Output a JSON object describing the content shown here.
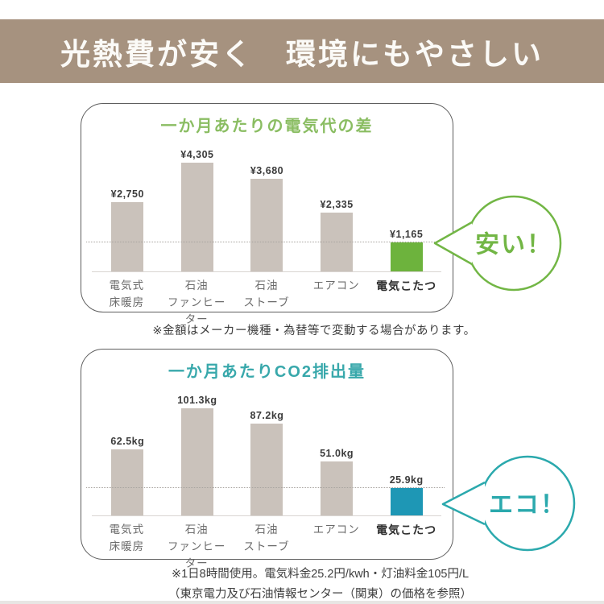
{
  "banner": {
    "text": "光熱費が安く　環境にもやさしい",
    "bg": "#a6927f",
    "color": "#fbfaf7"
  },
  "notes": {
    "price_variation": "※金額はメーカー機種・為替等で変動する場合があります。",
    "usage_line1": "※1日8時間使用。電気料金25.2円/kwh・灯油料金105円/L",
    "usage_line2": "（東京電力及び石油情報センター（関東）の価格を参照）"
  },
  "chart_data": [
    {
      "type": "bar",
      "title": "一か月あたりの電気代の差",
      "categories": [
        "電気式床暖房",
        "石油ファンヒーター",
        "石油ストーブ",
        "エアコン",
        "電気こたつ"
      ],
      "category_lines": [
        [
          "電気式",
          "床暖房"
        ],
        [
          "石油",
          "ファンヒーター"
        ],
        [
          "石油",
          "ストーブ"
        ],
        [
          "エアコン"
        ],
        [
          "電気こたつ"
        ]
      ],
      "values": [
        2750,
        4305,
        3680,
        2335,
        1165
      ],
      "data_labels": [
        "¥2,750",
        "¥4,305",
        "¥3,680",
        "¥2,335",
        "¥1,165"
      ],
      "unit": "¥",
      "ylim": [
        0,
        4500
      ],
      "grid": false,
      "legend": "none",
      "highlight_index": 4,
      "bar_color": "#cac2bb",
      "highlight_color": "#6db33d",
      "title_color": "#8abd62",
      "annotation": "安い！",
      "annotation_color": "#72b645",
      "reference_line_at_highlight_top": true
    },
    {
      "type": "bar",
      "title": "一か月あたりCO2排出量",
      "categories": [
        "電気式床暖房",
        "石油ファンヒーター",
        "石油ストーブ",
        "エアコン",
        "電気こたつ"
      ],
      "category_lines": [
        [
          "電気式",
          "床暖房"
        ],
        [
          "石油",
          "ファンヒーター"
        ],
        [
          "石油",
          "ストーブ"
        ],
        [
          "エアコン"
        ],
        [
          "電気こたつ"
        ]
      ],
      "values": [
        62.5,
        101.3,
        87.2,
        51.0,
        25.9
      ],
      "data_labels": [
        "62.5kg",
        "101.3kg",
        "87.2kg",
        "51.0kg",
        "25.9kg"
      ],
      "unit": "kg",
      "ylim": [
        0,
        110
      ],
      "grid": false,
      "legend": "none",
      "highlight_index": 4,
      "bar_color": "#cac2bb",
      "highlight_color": "#1e97b5",
      "title_color": "#38a8ab",
      "annotation": "エコ！",
      "annotation_color": "#2ba9ad",
      "reference_line_at_highlight_top": true
    }
  ]
}
